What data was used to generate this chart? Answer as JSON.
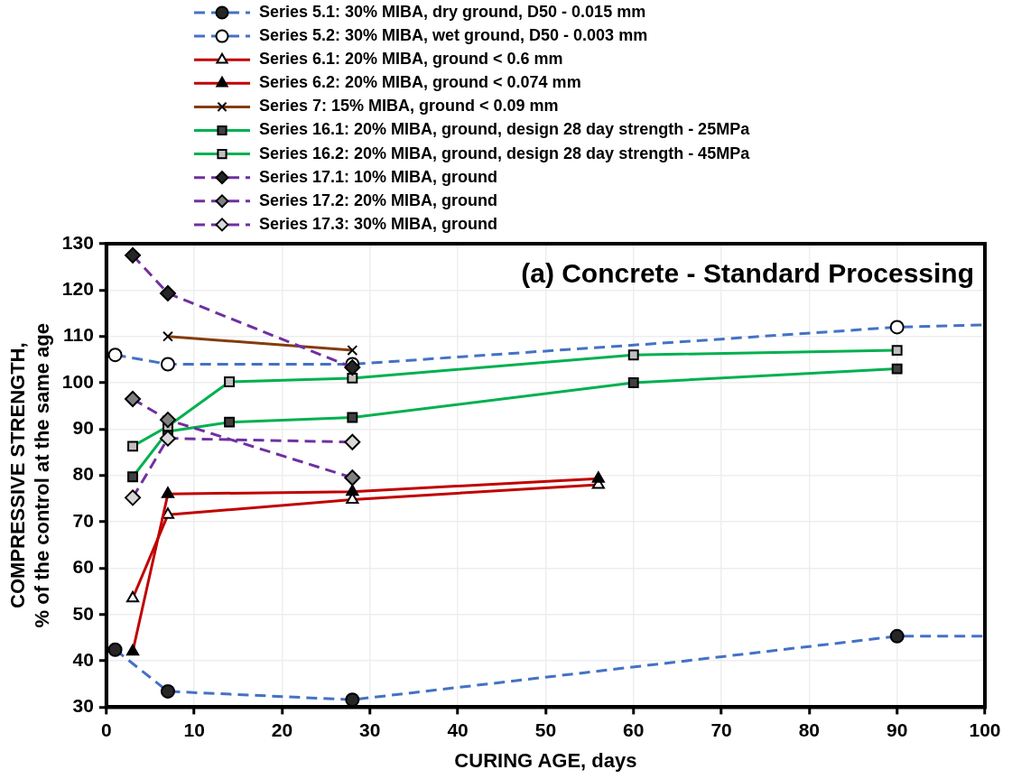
{
  "chart_data": {
    "type": "line",
    "title": "(a) Concrete - Standard Processing",
    "xlabel": "CURING AGE, days",
    "ylabel": "COMPRESSIVE STRENGTH,\n% of the control at the same age",
    "xlim": [
      0,
      100
    ],
    "xticks": [
      0,
      10,
      20,
      30,
      40,
      50,
      60,
      70,
      80,
      90,
      100
    ],
    "ylim": [
      30,
      130
    ],
    "yticks": [
      30,
      40,
      50,
      60,
      70,
      80,
      90,
      100,
      110,
      120,
      130
    ],
    "grid": true,
    "legend": "top",
    "series": [
      {
        "name": "Series 5.1: 30% MIBA, dry ground, D50 - 0.015 mm",
        "color": "#4472c4",
        "line_style": "dashed",
        "marker": "circle",
        "colors": [
          "#262626",
          "#262626",
          "#262626",
          "#262626",
          "#262626"
        ],
        "x": [
          1,
          7,
          28,
          90,
          100
        ],
        "values": [
          42.4,
          33.4,
          31.6,
          45.3,
          45.3
        ]
      },
      {
        "name": "Series 5.2: 30% MIBA, wet ground, D50 - 0.003 mm",
        "color": "#4472c4",
        "line_style": "dashed",
        "marker": "circle",
        "colors": [
          "#ffffff",
          "#ffffff",
          "#ffffff",
          "#ffffff",
          "#ffffff"
        ],
        "x": [
          1,
          7,
          28,
          90,
          100
        ],
        "values": [
          106,
          104,
          104,
          112,
          112.5
        ]
      },
      {
        "name": "Series 6.1: 20% MIBA, ground < 0.6 mm",
        "color": "#c00000",
        "line_style": "solid",
        "marker": "triangle",
        "colors": [
          "#ffffff",
          "#ffffff",
          "#ffffff",
          "#ffffff"
        ],
        "x": [
          3,
          7,
          28,
          56
        ],
        "values": [
          53.5,
          71.5,
          74.8,
          78
        ]
      },
      {
        "name": "Series 6.2: 20% MIBA, ground < 0.074 mm",
        "color": "#c00000",
        "line_style": "solid",
        "marker": "triangle",
        "colors": [
          "#000000",
          "#000000",
          "#000000",
          "#000000"
        ],
        "x": [
          3,
          7,
          28,
          56
        ],
        "values": [
          42,
          76,
          76.5,
          79.3
        ]
      },
      {
        "name": "Series 7: 15% MIBA, ground < 0.09 mm",
        "color": "#843c0c",
        "line_style": "solid",
        "marker": "cross",
        "colors": [
          "#000000",
          "#000000"
        ],
        "x": [
          7,
          28
        ],
        "values": [
          110,
          107
        ]
      },
      {
        "name": "Series 16.1: 20% MIBA, ground, design 28 day strength - 25MPa",
        "color": "#00b050",
        "line_style": "solid",
        "marker": "square",
        "colors": [
          "#404040",
          "#404040",
          "#404040",
          "#404040",
          "#404040",
          "#404040"
        ],
        "x": [
          3,
          7,
          14,
          28,
          60,
          90
        ],
        "values": [
          79.7,
          89.5,
          91.5,
          92.5,
          100,
          103
        ]
      },
      {
        "name": "Series 16.2: 20% MIBA, ground, design 28 day strength - 45MPa",
        "color": "#00b050",
        "line_style": "solid",
        "marker": "square",
        "colors": [
          "#bfbfbf",
          "#bfbfbf",
          "#bfbfbf",
          "#bfbfbf",
          "#bfbfbf",
          "#bfbfbf"
        ],
        "x": [
          3,
          7,
          14,
          28,
          60,
          90
        ],
        "values": [
          86.3,
          90.6,
          100.2,
          101,
          106,
          107
        ]
      },
      {
        "name": "Series 17.1: 10% MIBA, ground",
        "color": "#7030a0",
        "line_style": "dashed",
        "marker": "diamond",
        "colors": [
          "#262626",
          "#262626",
          "#262626"
        ],
        "x": [
          3,
          7,
          28
        ],
        "values": [
          127.5,
          119.3,
          103.3
        ]
      },
      {
        "name": "Series 17.2: 20% MIBA, ground",
        "color": "#7030a0",
        "line_style": "dashed",
        "marker": "diamond",
        "colors": [
          "#808080",
          "#808080",
          "#808080"
        ],
        "x": [
          3,
          7,
          28
        ],
        "values": [
          96.5,
          92,
          79.5
        ]
      },
      {
        "name": "Series 17.3: 30% MIBA, ground",
        "color": "#7030a0",
        "line_style": "dashed",
        "marker": "diamond",
        "colors": [
          "#d9d9d9",
          "#d9d9d9",
          "#d9d9d9"
        ],
        "x": [
          3,
          7,
          28
        ],
        "values": [
          75.2,
          88,
          87.2
        ]
      }
    ]
  }
}
